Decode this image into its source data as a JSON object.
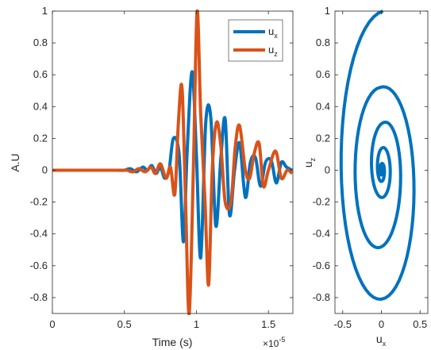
{
  "chart_data": [
    {
      "type": "line",
      "xlabel": "Time (s)",
      "ylabel": "A.U",
      "x_exponent_base": "×10",
      "x_exponent_power": "-5",
      "xlim": [
        0,
        1.67
      ],
      "ylim": [
        -0.9,
        1.0
      ],
      "x_unit_scale": 1e-05,
      "xticks": [
        0,
        0.5,
        1,
        1.5
      ],
      "xtick_labels": [
        "0",
        "0.5",
        "1",
        "1.5"
      ],
      "yticks": [
        -0.8,
        -0.6,
        -0.4,
        -0.2,
        0,
        0.2,
        0.4,
        0.6,
        0.8,
        1
      ],
      "ytick_labels": [
        "-0.8",
        "-0.6",
        "-0.4",
        "-0.2",
        "0",
        "0.2",
        "0.4",
        "0.6",
        "0.8",
        "1"
      ],
      "grid": false,
      "legend_position": "top-right",
      "series": [
        {
          "name": "ux",
          "legend_base": "u",
          "legend_sub": "x",
          "color": "#0072BD",
          "x": [
            0,
            0.3,
            0.4,
            0.45,
            0.5,
            0.54,
            0.58,
            0.6,
            0.63,
            0.66,
            0.69,
            0.72,
            0.75,
            0.78,
            0.81,
            0.84,
            0.88,
            0.91,
            0.935,
            0.97,
            1.0,
            1.03,
            1.065,
            1.1,
            1.135,
            1.17,
            1.2,
            1.23,
            1.265,
            1.3,
            1.34,
            1.375,
            1.41,
            1.445,
            1.48,
            1.52,
            1.555,
            1.59,
            1.625,
            1.665
          ],
          "values": [
            0,
            0,
            0,
            0,
            0,
            0.01,
            -0.01,
            0.0,
            0.02,
            0.0,
            0.03,
            -0.02,
            0.02,
            -0.05,
            0.0,
            0.2,
            0.1,
            -0.45,
            0.1,
            0.62,
            0.1,
            -0.55,
            0.3,
            0.33,
            -0.35,
            0.08,
            0.32,
            -0.28,
            0.0,
            0.17,
            -0.17,
            0.05,
            0.08,
            -0.1,
            0.05,
            0.06,
            -0.08,
            0.05,
            0.02,
            0.0
          ]
        },
        {
          "name": "uz",
          "legend_base": "u",
          "legend_sub": "z",
          "color": "#D95319",
          "x": [
            0,
            0.3,
            0.4,
            0.45,
            0.5,
            0.52,
            0.56,
            0.6,
            0.645,
            0.685,
            0.715,
            0.75,
            0.79,
            0.82,
            0.85,
            0.875,
            0.9,
            0.925,
            0.95,
            0.98,
            1.005,
            1.03,
            1.06,
            1.085,
            1.11,
            1.14,
            1.17,
            1.2,
            1.24,
            1.27,
            1.3,
            1.34,
            1.37,
            1.4,
            1.435,
            1.465,
            1.5,
            1.55,
            1.59,
            1.63,
            1.665
          ],
          "values": [
            0,
            0,
            0,
            0,
            0,
            0.0,
            -0.01,
            0.01,
            -0.01,
            0.02,
            -0.02,
            0.04,
            -0.05,
            0.02,
            -0.15,
            0.3,
            0.52,
            -0.2,
            -0.9,
            0.05,
            1.0,
            0.35,
            -0.2,
            -0.72,
            0.0,
            0.3,
            0.15,
            -0.2,
            -0.2,
            0.15,
            0.28,
            0.0,
            -0.05,
            0.1,
            0.17,
            -0.1,
            0.0,
            0.12,
            -0.05,
            0.0,
            -0.02
          ]
        }
      ]
    },
    {
      "type": "line",
      "subtype": "spiral-hodogram",
      "xlabel_base": "u",
      "xlabel_sub": "x",
      "ylabel_base": "u",
      "ylabel_sub": "z",
      "xlim": [
        -0.6,
        0.6
      ],
      "ylim": [
        -0.9,
        1.0
      ],
      "xticks": [
        -0.5,
        0,
        0.5
      ],
      "xtick_labels": [
        "-0.5",
        "0",
        "0.5"
      ],
      "yticks": [
        -0.8,
        -0.6,
        -0.4,
        -0.2,
        0,
        0.2,
        0.4,
        0.6,
        0.8,
        1
      ],
      "ytick_labels": [
        "-0.8",
        "-0.6",
        "-0.4",
        "-0.2",
        "0",
        "0.2",
        "0.4",
        "0.6",
        "0.8",
        "1"
      ],
      "grid": false,
      "series": [
        {
          "color": "#0072BD",
          "loops": [
            {
              "cx": 0.02,
              "cy": 0.05,
              "rx": 0.58,
              "ry": 0.95
            },
            {
              "cx": -0.02,
              "cy": -0.1,
              "rx": 0.38,
              "ry": 0.62
            },
            {
              "cx": 0.03,
              "cy": 0.03,
              "rx": 0.18,
              "ry": 0.27
            },
            {
              "cx": 0.01,
              "cy": 0.02,
              "rx": 0.07,
              "ry": 0.12
            },
            {
              "cx": 0.0,
              "cy": 0.0,
              "rx": 0.025,
              "ry": 0.04
            }
          ]
        }
      ]
    }
  ]
}
